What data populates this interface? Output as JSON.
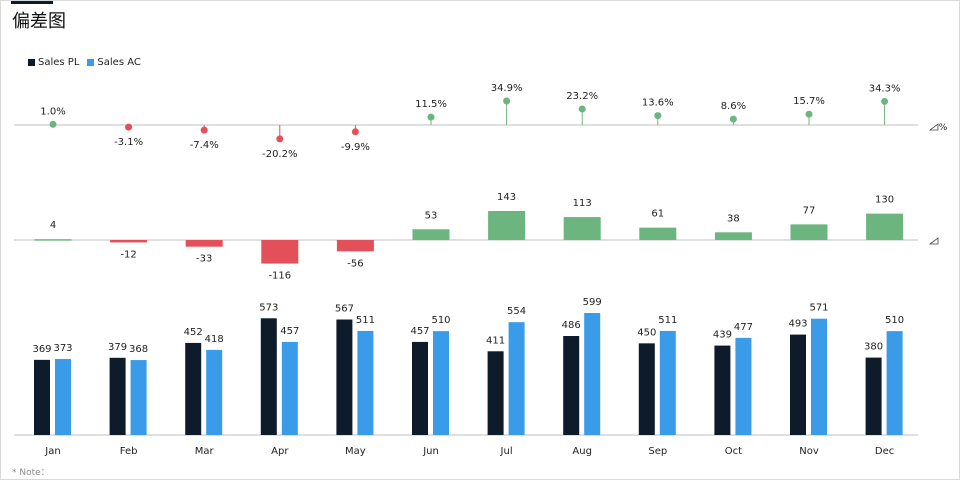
{
  "title": "偏差图",
  "note": "* Note：",
  "legend": [
    {
      "name": "Sales PL",
      "color": "#0d1b2a"
    },
    {
      "name": "Sales AC",
      "color": "#3a9be8"
    }
  ],
  "colors": {
    "pl": "#0d1b2a",
    "ac": "#3a9be8",
    "positive": "#6db57e",
    "negative": "#e3505a",
    "axis": "#bfbfbf"
  },
  "icons": {
    "percent_axis": "delta-percent-icon",
    "abs_axis": "delta-icon"
  },
  "chart_data": [
    {
      "type": "scatter",
      "name": "percent-deviation",
      "categories": [
        "Jan",
        "Feb",
        "Mar",
        "Apr",
        "May",
        "Jun",
        "Jul",
        "Aug",
        "Sep",
        "Oct",
        "Nov",
        "Dec"
      ],
      "values": [
        1.0,
        -3.1,
        -7.4,
        -20.2,
        -9.9,
        11.5,
        34.9,
        23.2,
        13.6,
        8.6,
        15.7,
        34.3
      ],
      "labels": [
        "1.0%",
        "-3.1%",
        "-7.4%",
        "-20.2%",
        "-9.9%",
        "11.5%",
        "34.9%",
        "23.2%",
        "13.6%",
        "8.6%",
        "15.7%",
        "34.3%"
      ],
      "axis_label": "%"
    },
    {
      "type": "bar",
      "name": "absolute-deviation",
      "categories": [
        "Jan",
        "Feb",
        "Mar",
        "Apr",
        "May",
        "Jun",
        "Jul",
        "Aug",
        "Sep",
        "Oct",
        "Nov",
        "Dec"
      ],
      "values": [
        4,
        -12,
        -33,
        -116,
        -56,
        53,
        143,
        113,
        61,
        38,
        77,
        130
      ]
    },
    {
      "type": "bar",
      "name": "sales",
      "categories": [
        "Jan",
        "Feb",
        "Mar",
        "Apr",
        "May",
        "Jun",
        "Jul",
        "Aug",
        "Sep",
        "Oct",
        "Nov",
        "Dec"
      ],
      "series": [
        {
          "name": "Sales PL",
          "values": [
            369,
            379,
            452,
            573,
            567,
            457,
            411,
            486,
            450,
            439,
            493,
            380
          ]
        },
        {
          "name": "Sales AC",
          "values": [
            373,
            368,
            418,
            457,
            511,
            510,
            554,
            599,
            511,
            477,
            571,
            510
          ]
        }
      ],
      "ylim": [
        0,
        620
      ]
    }
  ]
}
